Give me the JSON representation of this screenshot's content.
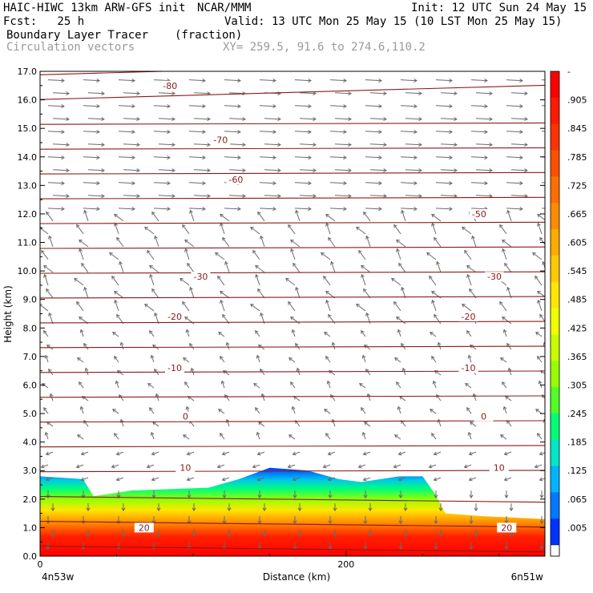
{
  "header": {
    "model": "HAIC-HIWC 13km ARW-GFS init",
    "org": "NCAR/MMM",
    "init": "Init: 12 UTC Sun 24 May 15",
    "fcst": "Fcst:   25 h",
    "valid": "Valid: 13 UTC Mon 25 May 15 (10 LST Mon 25 May 15)",
    "field1": "Boundary Layer Tracer",
    "field1_units": "(fraction)",
    "field2": "Circulation vectors",
    "xy": "XY= 259.5, 91.6 to 274.6,110.2"
  },
  "chart_data": {
    "type": "heatmap",
    "xlabel": "Distance (km)",
    "ylabel": "Height (km)",
    "xlim": [
      0,
      330
    ],
    "ylim": [
      0,
      17
    ],
    "x_ticks": [
      {
        "value": 0,
        "label": "0"
      },
      {
        "value": 200,
        "label": "200"
      }
    ],
    "y_ticks": [
      "0.0",
      "1.0",
      "2.0",
      "3.0",
      "4.0",
      "5.0",
      "6.0",
      "7.0",
      "8.0",
      "9.0",
      "10.0",
      "11.0",
      "12.0",
      "13.0",
      "14.0",
      "15.0",
      "16.0",
      "17.0"
    ],
    "endpoint_labels": {
      "left": "4n53w",
      "right": "6n51w"
    },
    "colorbar": {
      "labels": [
        "-",
        ".905",
        ".845",
        ".785",
        ".725",
        ".665",
        ".605",
        ".545",
        ".485",
        ".425",
        ".365",
        ".305",
        ".245",
        ".185",
        ".125",
        ".065",
        ".005"
      ],
      "colors": [
        "#ff0000",
        "#ff1a00",
        "#ff3300",
        "#ff5000",
        "#ff6e00",
        "#ff8c00",
        "#ffaa00",
        "#ffc800",
        "#ffe600",
        "#f0ff00",
        "#c8ff00",
        "#96ff00",
        "#50ff28",
        "#00ff78",
        "#00e6c8",
        "#00b4ff",
        "#0078ff",
        "#0032ff"
      ]
    },
    "tracer_top_km": [
      [
        0,
        2.8
      ],
      [
        28,
        2.7
      ],
      [
        35,
        2.1
      ],
      [
        60,
        2.3
      ],
      [
        110,
        2.4
      ],
      [
        130,
        2.7
      ],
      [
        150,
        3.1
      ],
      [
        175,
        3.0
      ],
      [
        195,
        2.7
      ],
      [
        210,
        2.6
      ],
      [
        235,
        2.8
      ],
      [
        250,
        2.8
      ],
      [
        258,
        2.2
      ],
      [
        265,
        1.5
      ],
      [
        290,
        1.4
      ],
      [
        330,
        1.3
      ]
    ],
    "isotherm_labels": [
      {
        "label": "-80",
        "x": 85,
        "height": 16.5
      },
      {
        "label": "-70",
        "x": 118,
        "height": 14.6
      },
      {
        "label": "-60",
        "x": 128,
        "height": 13.2
      },
      {
        "label": "-50",
        "x": 287,
        "height": 12.0
      },
      {
        "label": "-30",
        "x": 105,
        "height": 9.8
      },
      {
        "label": "-30",
        "x": 297,
        "height": 9.8
      },
      {
        "label": "-20",
        "x": 88,
        "height": 8.4
      },
      {
        "label": "-20",
        "x": 280,
        "height": 8.4
      },
      {
        "label": "-10",
        "x": 88,
        "height": 6.6
      },
      {
        "label": "-10",
        "x": 280,
        "height": 6.6
      },
      {
        "label": "0",
        "x": 95,
        "height": 4.9
      },
      {
        "label": "0",
        "x": 290,
        "height": 4.9
      },
      {
        "label": "10",
        "x": 95,
        "height": 3.1
      },
      {
        "label": "10",
        "x": 300,
        "height": 3.1
      },
      {
        "label": "20",
        "x": 68,
        "height": 1.0
      },
      {
        "label": "20",
        "x": 305,
        "height": 1.0
      }
    ]
  }
}
